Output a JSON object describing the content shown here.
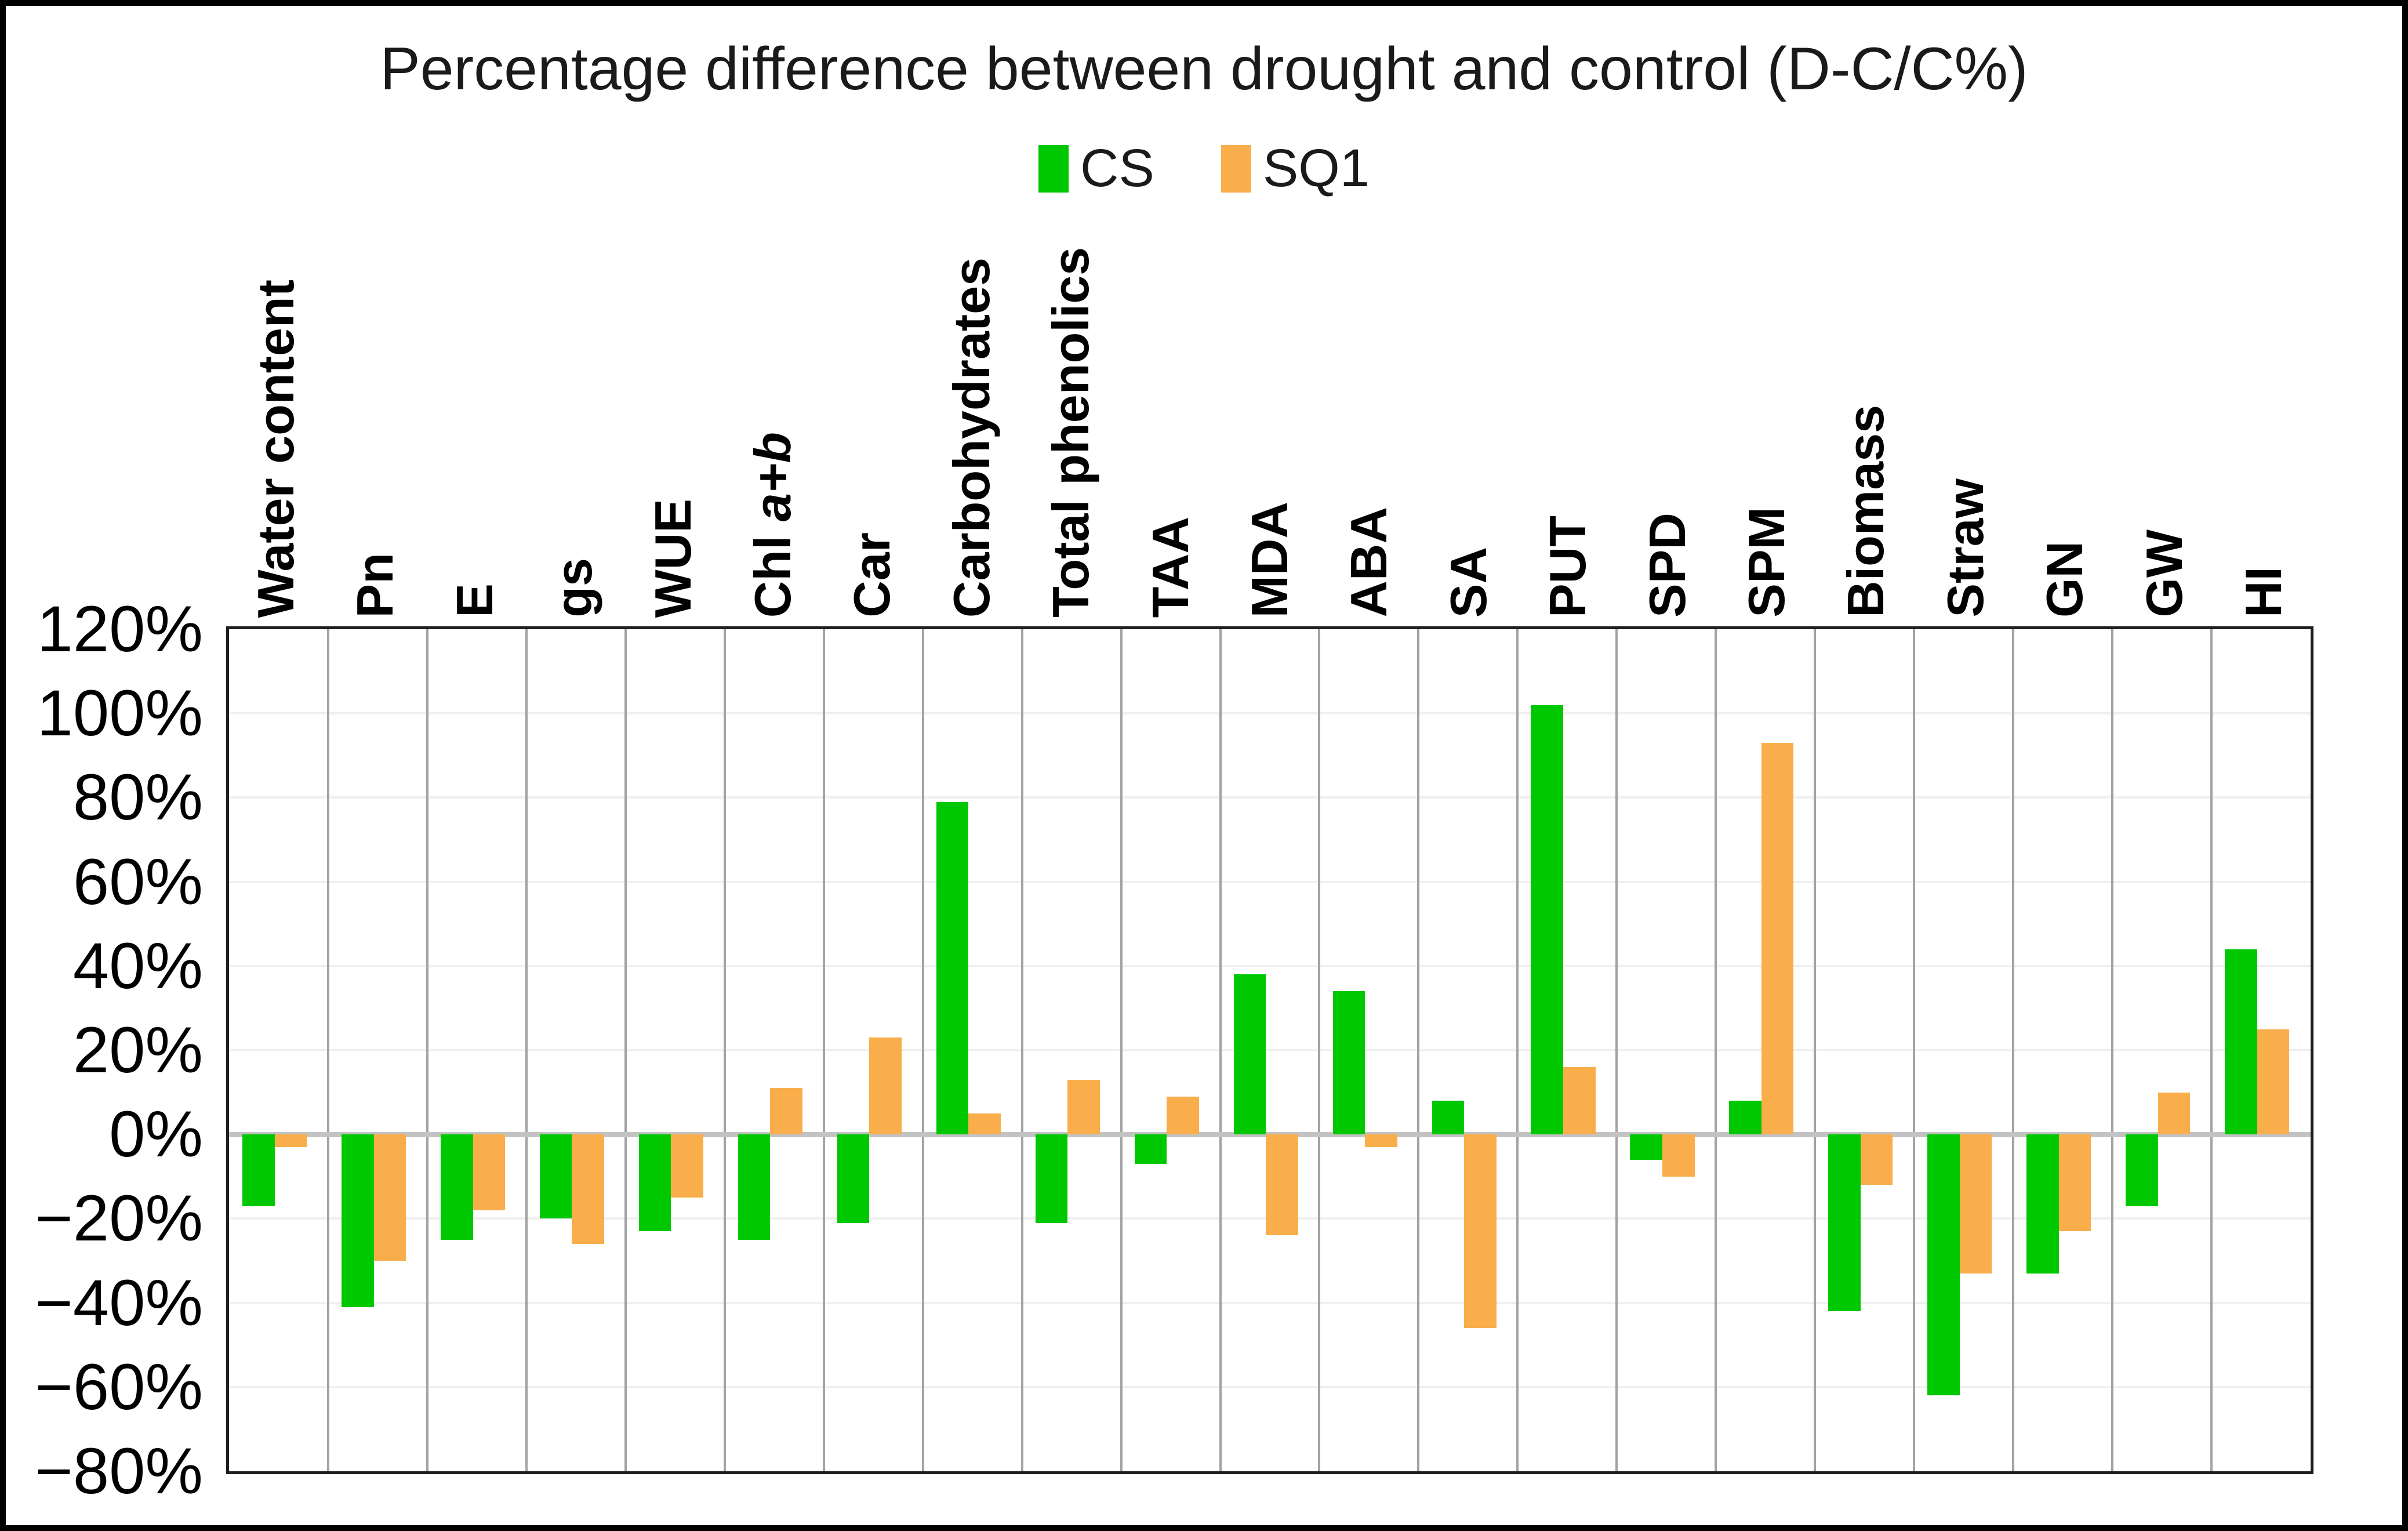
{
  "chart_data": {
    "type": "bar",
    "title": "Percentage difference between drought and control (D-C/C%)",
    "categories": [
      "Water content",
      "Pn",
      "E",
      "gs",
      "WUE",
      "Chl a+b",
      "Car",
      "Carbohydrates",
      "Total phenolics",
      "TAA",
      "MDA",
      "ABA",
      "SA",
      "PUT",
      "SPD",
      "SPM",
      "Biomass",
      "Straw",
      "GN",
      "GW",
      "HI"
    ],
    "categories_rich": [
      {
        "label": "Water content",
        "italic": ""
      },
      {
        "label": "Pn",
        "italic": ""
      },
      {
        "label": "E",
        "italic": ""
      },
      {
        "label": "gs",
        "italic": ""
      },
      {
        "label": "WUE",
        "italic": ""
      },
      {
        "label": "Chl",
        "italic": "a+b"
      },
      {
        "label": "Car",
        "italic": ""
      },
      {
        "label": "Carbohydrates",
        "italic": ""
      },
      {
        "label": "Total phenolics",
        "italic": ""
      },
      {
        "label": "TAA",
        "italic": ""
      },
      {
        "label": "MDA",
        "italic": ""
      },
      {
        "label": "ABA",
        "italic": ""
      },
      {
        "label": "SA",
        "italic": ""
      },
      {
        "label": "PUT",
        "italic": ""
      },
      {
        "label": "SPD",
        "italic": ""
      },
      {
        "label": "SPM",
        "italic": ""
      },
      {
        "label": "Biomass",
        "italic": ""
      },
      {
        "label": "Straw",
        "italic": ""
      },
      {
        "label": "GN",
        "italic": ""
      },
      {
        "label": "GW",
        "italic": ""
      },
      {
        "label": "HI",
        "italic": ""
      }
    ],
    "series": [
      {
        "name": "CS",
        "color": "#00C800",
        "values": [
          -17,
          -41,
          -25,
          -20,
          -23,
          -25,
          -21,
          79,
          -21,
          -7,
          38,
          34,
          8,
          102,
          -6,
          8,
          -42,
          -62,
          -33,
          -17,
          44
        ]
      },
      {
        "name": "SQ1",
        "color": "#F9AE4B",
        "values": [
          -3,
          -30,
          -18,
          -26,
          -15,
          11,
          23,
          5,
          13,
          9,
          -24,
          -3,
          -46,
          16,
          -10,
          93,
          -12,
          -33,
          -23,
          10,
          25
        ]
      }
    ],
    "xlabel": "",
    "ylabel": "",
    "ylim": [
      -80,
      120
    ],
    "ytick_step": 20,
    "ytick_labels": [
      "120%",
      "100%",
      "80%",
      "60%",
      "40%",
      "20%",
      "0%",
      "−20%",
      "−40%",
      "−60%",
      "−80%"
    ],
    "ytick_values": [
      120,
      100,
      80,
      60,
      40,
      20,
      0,
      -20,
      -40,
      -60,
      -80
    ],
    "legend_position": "top-center",
    "grid": {
      "vertical": true,
      "horizontal": "light",
      "zero_line": true
    }
  },
  "colors": {
    "cs": "#00C800",
    "sq1": "#F9AE4B",
    "vertical_grid": "#a3a3a3",
    "horizontal_grid": "#f0f0f0",
    "zero_line": "#c3c3c3",
    "plot_border": "#1f1f1f",
    "figure_border": "#000000"
  }
}
